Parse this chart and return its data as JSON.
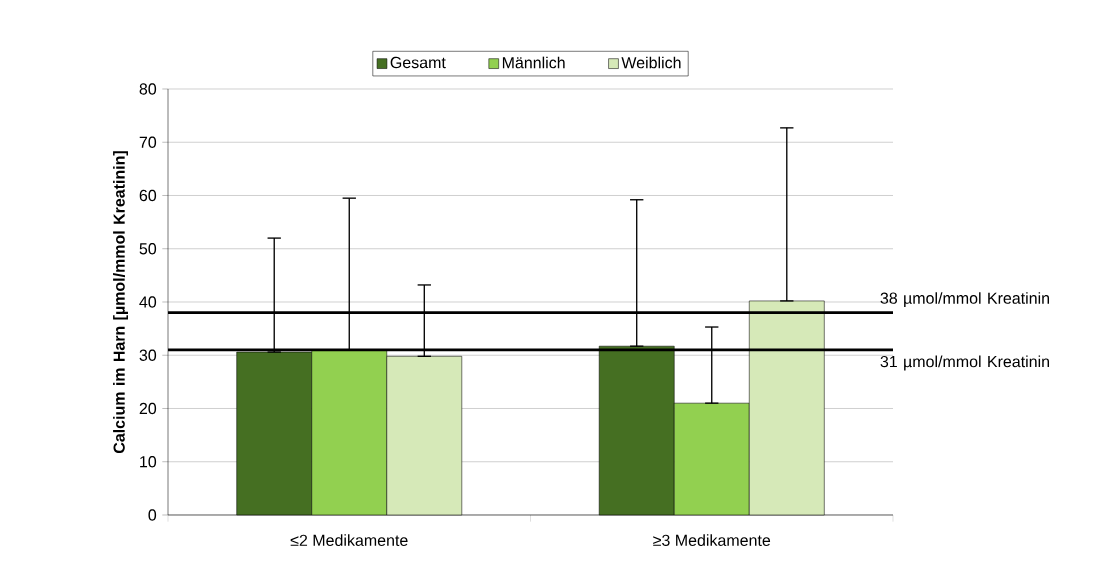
{
  "chart_data": {
    "type": "bar",
    "ylabel": "Calcium im Harn [µmol/mmol Kreatinin]",
    "categories": [
      "≤2 Medikamente",
      "≥3 Medikamente"
    ],
    "series": [
      {
        "name": "Gesamt",
        "color": "#456f22",
        "values": [
          30.6,
          31.7
        ],
        "errors": [
          [
            30.6,
            52
          ],
          [
            31.7,
            59.2
          ]
        ]
      },
      {
        "name": "Männlich",
        "color": "#92d050",
        "values": [
          31,
          21
        ],
        "errors": [
          [
            31,
            59.5
          ],
          [
            21,
            35.3
          ]
        ]
      },
      {
        "name": "Weiblich",
        "color": "#d6e9b8",
        "values": [
          29.8,
          40.2
        ],
        "errors": [
          [
            29.8,
            43.2
          ],
          [
            40.2,
            72.7
          ]
        ]
      }
    ],
    "ylim": [
      0,
      80
    ],
    "yticks": [
      0,
      10,
      20,
      30,
      40,
      50,
      60,
      70,
      80
    ],
    "grid": "y",
    "legend": "top",
    "ref_lines": [
      {
        "axis": "y",
        "value": 38,
        "label": "38 µmol/mmol Kreatinin"
      },
      {
        "axis": "y",
        "value": 31,
        "label": "31 µmol/mmol Kreatinin"
      }
    ]
  }
}
